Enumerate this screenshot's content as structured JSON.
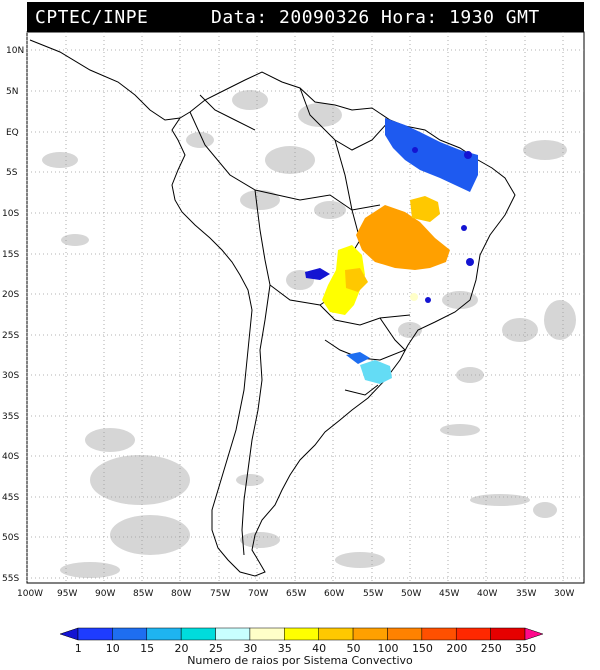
{
  "header": {
    "source": "CPTEC/INPE",
    "datetime": "Data: 20090326 Hora: 1930 GMT"
  },
  "map": {
    "lat_labels": [
      "10N",
      "5N",
      "EQ",
      "5S",
      "10S",
      "15S",
      "20S",
      "25S",
      "30S",
      "35S",
      "40S",
      "45S",
      "50S",
      "55S"
    ],
    "lon_labels": [
      "100W",
      "95W",
      "90W",
      "85W",
      "80W",
      "75W",
      "70W",
      "65W",
      "60W",
      "55W",
      "50W",
      "45W",
      "40W",
      "35W",
      "30W"
    ],
    "colors": {
      "land_outline": "#000000",
      "cloud": "#c9c9c9",
      "grid": "#9a9a9a"
    }
  },
  "colorbar": {
    "levels": [
      "1",
      "10",
      "15",
      "20",
      "25",
      "30",
      "35",
      "40",
      "50",
      "100",
      "150",
      "200",
      "250",
      "350"
    ],
    "colors": [
      "#1414d2",
      "#1e3cff",
      "#1e6ef0",
      "#1eb4f0",
      "#00dcdc",
      "#c8ffff",
      "#ffffc8",
      "#ffff00",
      "#ffc800",
      "#ffa000",
      "#ff8200",
      "#ff5000",
      "#ff2800",
      "#e60000",
      "#ff0a8c"
    ],
    "caption": "Numero de raios por Sistema Convectivo"
  }
}
